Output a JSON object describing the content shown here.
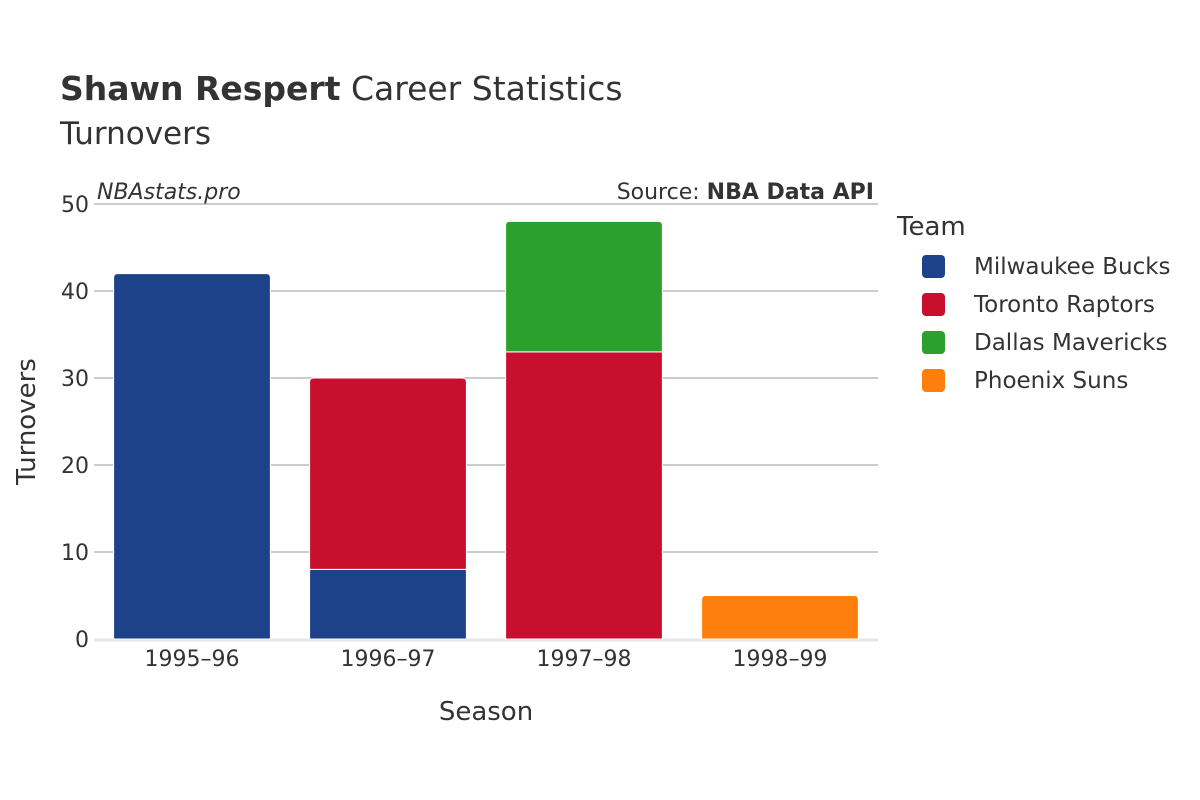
{
  "header": {
    "title_bold": "Shawn Respert",
    "title_rest": " Career Statistics",
    "subtitle": "Turnovers"
  },
  "credits": {
    "watermark": "NBAstats.pro",
    "source_label": "Source: ",
    "source_name": "NBA Data API"
  },
  "chart_data": {
    "type": "bar",
    "stacked": true,
    "categories": [
      "1995–96",
      "1996–97",
      "1997–98",
      "1998–99"
    ],
    "series": [
      {
        "name": "Milwaukee Bucks",
        "color": "#1d428a",
        "values": [
          42,
          8,
          0,
          0
        ]
      },
      {
        "name": "Toronto Raptors",
        "color": "#c8102e",
        "values": [
          0,
          22,
          33,
          0
        ]
      },
      {
        "name": "Dallas Mavericks",
        "color": "#2ca02c",
        "values": [
          0,
          0,
          15,
          0
        ]
      },
      {
        "name": "Phoenix Suns",
        "color": "#ff7f0e",
        "values": [
          0,
          0,
          0,
          5
        ]
      }
    ],
    "xlabel": "Season",
    "ylabel": "Turnovers",
    "ylim": [
      0,
      50
    ],
    "yticks": [
      0,
      10,
      20,
      30,
      40,
      50
    ],
    "grid": true,
    "legend_title": "Team",
    "legend_placement": "right"
  }
}
